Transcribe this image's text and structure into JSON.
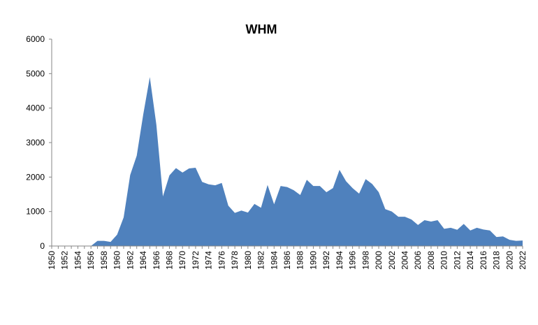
{
  "chart_data": {
    "type": "area",
    "title": "WHM",
    "xlabel": "",
    "ylabel": "",
    "color": "#4F81BD",
    "ylim": [
      0,
      6000
    ],
    "yticks": [
      "0",
      "1000",
      "2000",
      "3000",
      "4000",
      "5000",
      "6000"
    ],
    "xlim": [
      1950,
      2022
    ],
    "xtick_labels": [
      "1950",
      "1952",
      "1954",
      "1956",
      "1958",
      "1960",
      "1962",
      "1964",
      "1966",
      "1968",
      "1970",
      "1972",
      "1974",
      "1976",
      "1978",
      "1980",
      "1982",
      "1984",
      "1986",
      "1988",
      "1990",
      "1992",
      "1994",
      "1996",
      "1998",
      "2000",
      "2002",
      "2004",
      "2006",
      "2008",
      "2010",
      "2012",
      "2014",
      "2016",
      "2018",
      "2020",
      "2022"
    ],
    "grid": false,
    "legend": "none",
    "series": [
      {
        "x": [
          1950,
          1951,
          1952,
          1953,
          1954,
          1955,
          1956,
          1957,
          1958,
          1959,
          1960,
          1961,
          1962,
          1963,
          1964,
          1965,
          1966,
          1967,
          1968,
          1969,
          1970,
          1971,
          1972,
          1973,
          1974,
          1975,
          1976,
          1977,
          1978,
          1979,
          1980,
          1981,
          1982,
          1983,
          1984,
          1985,
          1986,
          1987,
          1988,
          1989,
          1990,
          1991,
          1992,
          1993,
          1994,
          1995,
          1996,
          1997,
          1998,
          1999,
          2000,
          2001,
          2002,
          2003,
          2004,
          2005,
          2006,
          2007,
          2008,
          2009,
          2010,
          2011,
          2012,
          2013,
          2014,
          2015,
          2016,
          2017,
          2018,
          2019,
          2020,
          2021,
          2022
        ],
        "values": [
          0,
          0,
          0,
          0,
          0,
          0,
          0,
          150,
          150,
          120,
          330,
          830,
          2060,
          2620,
          3820,
          4900,
          3520,
          1440,
          2050,
          2260,
          2130,
          2250,
          2270,
          1860,
          1790,
          1760,
          1830,
          1170,
          960,
          1030,
          970,
          1220,
          1110,
          1770,
          1210,
          1740,
          1710,
          1620,
          1480,
          1920,
          1740,
          1740,
          1560,
          1680,
          2210,
          1880,
          1680,
          1520,
          1940,
          1800,
          1560,
          1070,
          1000,
          850,
          850,
          770,
          610,
          750,
          710,
          750,
          500,
          530,
          470,
          640,
          450,
          530,
          480,
          450,
          260,
          280,
          180,
          150,
          160
        ]
      }
    ]
  }
}
